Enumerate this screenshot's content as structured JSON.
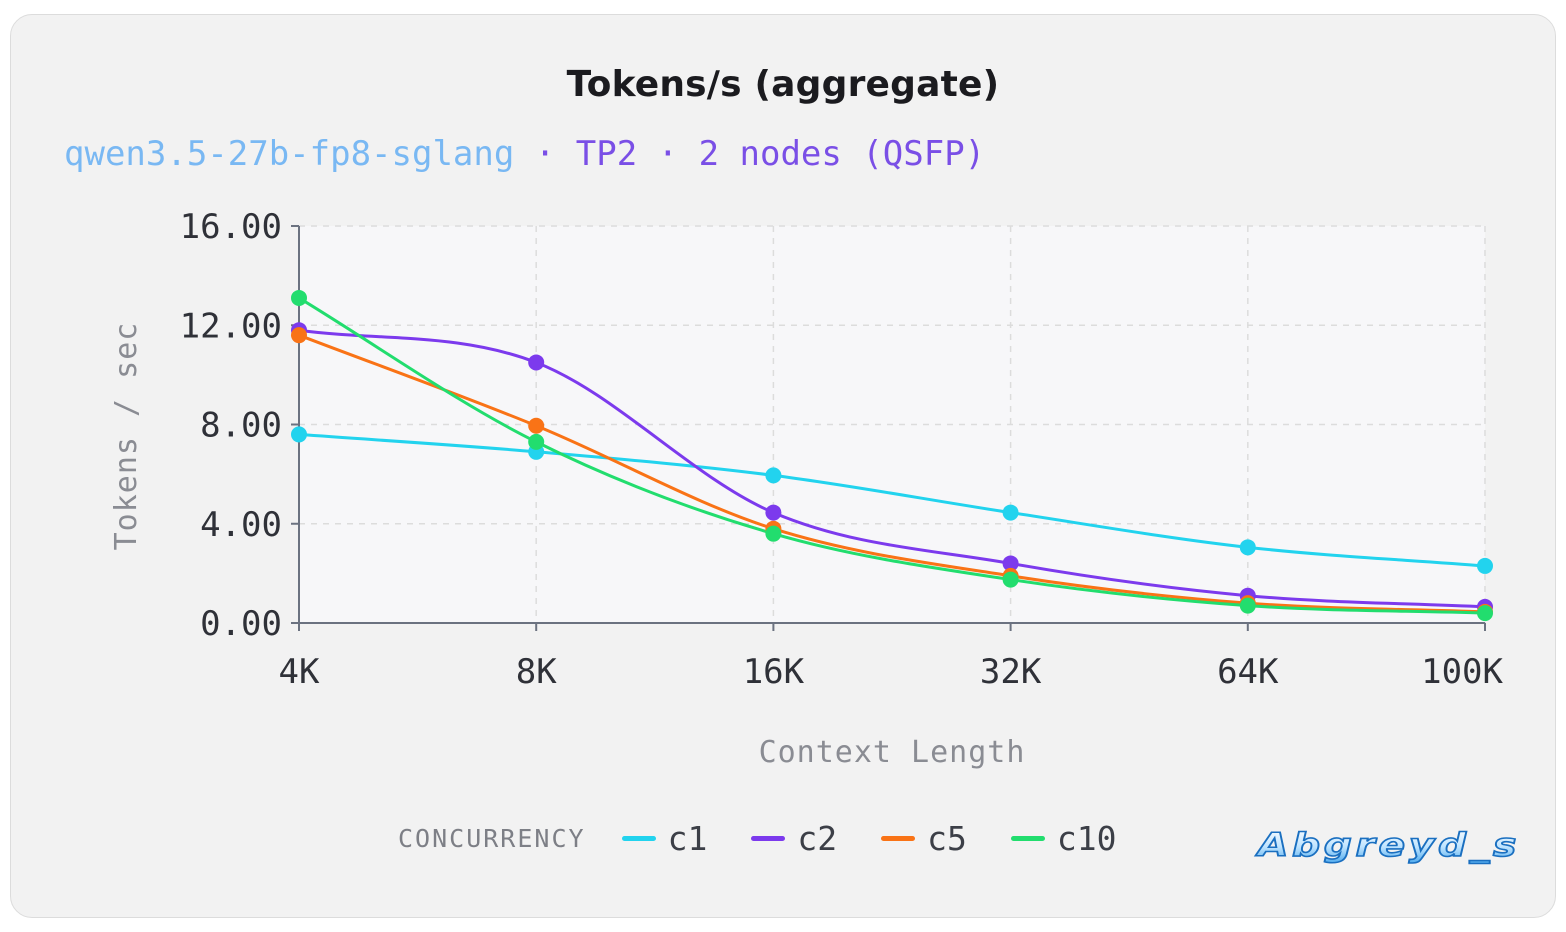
{
  "title": "Tokens/s (aggregate)",
  "subtitle": {
    "model": "qwen3.5-27b-fp8-sglang",
    "rest": " · TP2 · 2 nodes (QSFP)"
  },
  "legend": {
    "title": "CONCURRENCY"
  },
  "watermark": "Abgreyd_s",
  "colors": {
    "c1": "#22d3ee",
    "c2": "#7c3aed",
    "c5": "#f97316",
    "c10": "#22dd6e",
    "axis": "#6b7280",
    "grid": "#dcdcdc"
  },
  "chart_data": {
    "type": "line",
    "title": "Tokens/s (aggregate)",
    "xlabel": "Context Length",
    "ylabel": "Tokens / sec",
    "categories": [
      "4K",
      "8K",
      "16K",
      "32K",
      "64K",
      "100K"
    ],
    "ylim": [
      0,
      16
    ],
    "yticks": [
      "0.00",
      "4.00",
      "8.00",
      "12.00",
      "16.00"
    ],
    "ytick_values": [
      0,
      4,
      8,
      12,
      16
    ],
    "grid": true,
    "legend_position": "bottom",
    "series": [
      {
        "name": "c1",
        "color": "#22d3ee",
        "values": [
          7.6,
          6.9,
          5.95,
          4.45,
          3.05,
          2.3
        ]
      },
      {
        "name": "c2",
        "color": "#7c3aed",
        "values": [
          11.8,
          10.5,
          4.45,
          2.4,
          1.1,
          0.65
        ]
      },
      {
        "name": "c5",
        "color": "#f97316",
        "values": [
          11.6,
          7.95,
          3.8,
          1.9,
          0.8,
          0.45
        ]
      },
      {
        "name": "c10",
        "color": "#22dd6e",
        "values": [
          13.1,
          7.3,
          3.6,
          1.75,
          0.7,
          0.4
        ]
      }
    ]
  }
}
